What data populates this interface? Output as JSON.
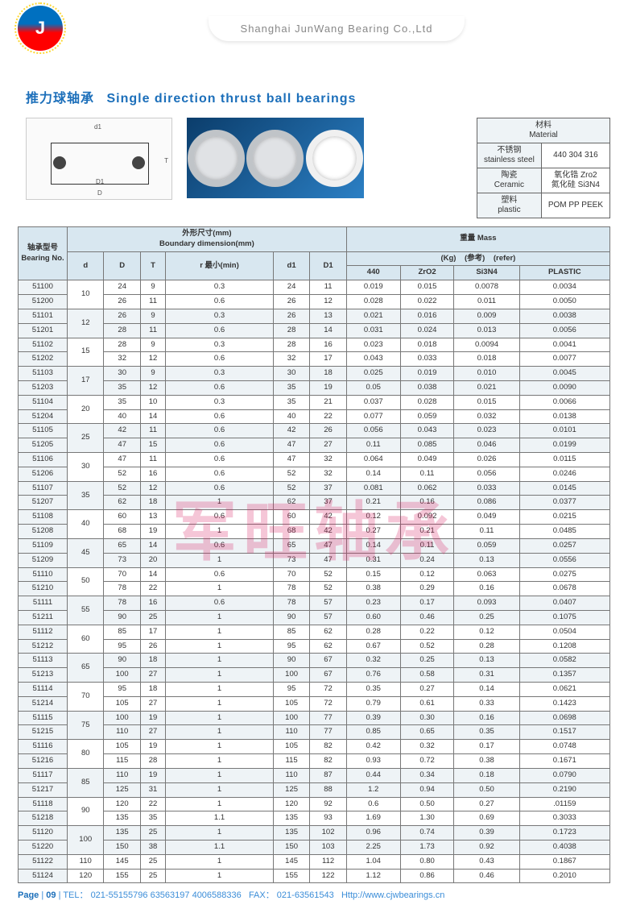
{
  "company": "Shanghai  JunWang  Bearing  Co.,Ltd",
  "title_cn": "推力球轴承",
  "title_en": "Single direction thrust ball bearings",
  "material_header": {
    "cn": "材料",
    "en": "Material"
  },
  "materials": [
    {
      "name_cn": "不锈钢",
      "name_en": "stainless steel",
      "value": "440 304 316"
    },
    {
      "name_cn": "陶瓷",
      "name_en": "Ceramic",
      "value": "氧化锆 Zro2\n氮化硅 Si3N4"
    },
    {
      "name_cn": "塑料",
      "name_en": "plastic",
      "value": "POM PP PEEK"
    }
  ],
  "col_groups": {
    "bearing_no_cn": "轴承型号",
    "bearing_no_en": "Bearing No.",
    "boundary_cn": "外形尺寸(mm)",
    "boundary_en": "Boundary dimension(mm)",
    "mass_cn": "重量 Mass",
    "kg": "(Kg)",
    "ref_cn": "(参考)",
    "ref_en": "(refer)"
  },
  "cols": [
    "d",
    "D",
    "T",
    "r 最小(min)",
    "d1",
    "D1",
    "440",
    "ZrO2",
    "Si3N4",
    "PLASTIC"
  ],
  "rows": [
    [
      "51100",
      "10",
      "24",
      "9",
      "0.3",
      "24",
      "11",
      "0.019",
      "0.015",
      "0.0078",
      "0.0034"
    ],
    [
      "51200",
      "",
      "26",
      "11",
      "0.6",
      "26",
      "12",
      "0.028",
      "0.022",
      "0.011",
      "0.0050"
    ],
    [
      "51101",
      "12",
      "26",
      "9",
      "0.3",
      "26",
      "13",
      "0.021",
      "0.016",
      "0.009",
      "0.0038"
    ],
    [
      "51201",
      "",
      "28",
      "11",
      "0.6",
      "28",
      "14",
      "0.031",
      "0.024",
      "0.013",
      "0.0056"
    ],
    [
      "51102",
      "15",
      "28",
      "9",
      "0.3",
      "28",
      "16",
      "0.023",
      "0.018",
      "0.0094",
      "0.0041"
    ],
    [
      "51202",
      "",
      "32",
      "12",
      "0.6",
      "32",
      "17",
      "0.043",
      "0.033",
      "0.018",
      "0.0077"
    ],
    [
      "51103",
      "17",
      "30",
      "9",
      "0.3",
      "30",
      "18",
      "0.025",
      "0.019",
      "0.010",
      "0.0045"
    ],
    [
      "51203",
      "",
      "35",
      "12",
      "0.6",
      "35",
      "19",
      "0.05",
      "0.038",
      "0.021",
      "0.0090"
    ],
    [
      "51104",
      "20",
      "35",
      "10",
      "0.3",
      "35",
      "21",
      "0.037",
      "0.028",
      "0.015",
      "0.0066"
    ],
    [
      "51204",
      "",
      "40",
      "14",
      "0.6",
      "40",
      "22",
      "0.077",
      "0.059",
      "0.032",
      "0.0138"
    ],
    [
      "51105",
      "25",
      "42",
      "11",
      "0.6",
      "42",
      "26",
      "0.056",
      "0.043",
      "0.023",
      "0.0101"
    ],
    [
      "51205",
      "",
      "47",
      "15",
      "0.6",
      "47",
      "27",
      "0.11",
      "0.085",
      "0.046",
      "0.0199"
    ],
    [
      "51106",
      "30",
      "47",
      "11",
      "0.6",
      "47",
      "32",
      "0.064",
      "0.049",
      "0.026",
      "0.0115"
    ],
    [
      "51206",
      "",
      "52",
      "16",
      "0.6",
      "52",
      "32",
      "0.14",
      "0.11",
      "0.056",
      "0.0246"
    ],
    [
      "51107",
      "35",
      "52",
      "12",
      "0.6",
      "52",
      "37",
      "0.081",
      "0.062",
      "0.033",
      "0.0145"
    ],
    [
      "51207",
      "",
      "62",
      "18",
      "1",
      "62",
      "37",
      "0.21",
      "0.16",
      "0.086",
      "0.0377"
    ],
    [
      "51108",
      "40",
      "60",
      "13",
      "0.6",
      "60",
      "42",
      "0.12",
      "0.092",
      "0.049",
      "0.0215"
    ],
    [
      "51208",
      "",
      "68",
      "19",
      "1",
      "68",
      "42",
      "0.27",
      "0.21",
      "0.11",
      "0.0485"
    ],
    [
      "51109",
      "45",
      "65",
      "14",
      "0.6",
      "65",
      "47",
      "0.14",
      "0.11",
      "0.059",
      "0.0257"
    ],
    [
      "51209",
      "",
      "73",
      "20",
      "1",
      "73",
      "47",
      "0.31",
      "0.24",
      "0.13",
      "0.0556"
    ],
    [
      "51110",
      "50",
      "70",
      "14",
      "0.6",
      "70",
      "52",
      "0.15",
      "0.12",
      "0.063",
      "0.0275"
    ],
    [
      "51210",
      "",
      "78",
      "22",
      "1",
      "78",
      "52",
      "0.38",
      "0.29",
      "0.16",
      "0.0678"
    ],
    [
      "51111",
      "55",
      "78",
      "16",
      "0.6",
      "78",
      "57",
      "0.23",
      "0.17",
      "0.093",
      "0.0407"
    ],
    [
      "51211",
      "",
      "90",
      "25",
      "1",
      "90",
      "57",
      "0.60",
      "0.46",
      "0.25",
      "0.1075"
    ],
    [
      "51112",
      "60",
      "85",
      "17",
      "1",
      "85",
      "62",
      "0.28",
      "0.22",
      "0.12",
      "0.0504"
    ],
    [
      "51212",
      "",
      "95",
      "26",
      "1",
      "95",
      "62",
      "0.67",
      "0.52",
      "0.28",
      "0.1208"
    ],
    [
      "51113",
      "65",
      "90",
      "18",
      "1",
      "90",
      "67",
      "0.32",
      "0.25",
      "0.13",
      "0.0582"
    ],
    [
      "51213",
      "",
      "100",
      "27",
      "1",
      "100",
      "67",
      "0.76",
      "0.58",
      "0.31",
      "0.1357"
    ],
    [
      "51114",
      "70",
      "95",
      "18",
      "1",
      "95",
      "72",
      "0.35",
      "0.27",
      "0.14",
      "0.0621"
    ],
    [
      "51214",
      "",
      "105",
      "27",
      "1",
      "105",
      "72",
      "0.79",
      "0.61",
      "0.33",
      "0.1423"
    ],
    [
      "51115",
      "75",
      "100",
      "19",
      "1",
      "100",
      "77",
      "0.39",
      "0.30",
      "0.16",
      "0.0698"
    ],
    [
      "51215",
      "",
      "110",
      "27",
      "1",
      "110",
      "77",
      "0.85",
      "0.65",
      "0.35",
      "0.1517"
    ],
    [
      "51116",
      "80",
      "105",
      "19",
      "1",
      "105",
      "82",
      "0.42",
      "0.32",
      "0.17",
      "0.0748"
    ],
    [
      "51216",
      "",
      "115",
      "28",
      "1",
      "115",
      "82",
      "0.93",
      "0.72",
      "0.38",
      "0.1671"
    ],
    [
      "51117",
      "85",
      "110",
      "19",
      "1",
      "110",
      "87",
      "0.44",
      "0.34",
      "0.18",
      "0.0790"
    ],
    [
      "51217",
      "",
      "125",
      "31",
      "1",
      "125",
      "88",
      "1.2",
      "0.94",
      "0.50",
      "0.2190"
    ],
    [
      "51118",
      "90",
      "120",
      "22",
      "1",
      "120",
      "92",
      "0.6",
      "0.50",
      "0.27",
      ".01159"
    ],
    [
      "51218",
      "",
      "135",
      "35",
      "1.1",
      "135",
      "93",
      "1.69",
      "1.30",
      "0.69",
      "0.3033"
    ],
    [
      "51120",
      "100",
      "135",
      "25",
      "1",
      "135",
      "102",
      "0.96",
      "0.74",
      "0.39",
      "0.1723"
    ],
    [
      "51220",
      "",
      "150",
      "38",
      "1.1",
      "150",
      "103",
      "2.25",
      "1.73",
      "0.92",
      "0.4038"
    ],
    [
      "51122",
      "110",
      "145",
      "25",
      "1",
      "145",
      "112",
      "1.04",
      "0.80",
      "0.43",
      "0.1867"
    ],
    [
      "51124",
      "120",
      "155",
      "25",
      "1",
      "155",
      "122",
      "1.12",
      "0.86",
      "0.46",
      "0.2010"
    ]
  ],
  "footer": {
    "page": "Page",
    "num": "09",
    "tel_label": "TEL：",
    "tel": "021-55155796  63563197  4006588336",
    "fax_label": "FAX：",
    "fax": "021-63561543",
    "url": "Http://www.cjwbearings.cn"
  },
  "watermark": "军旺轴承"
}
